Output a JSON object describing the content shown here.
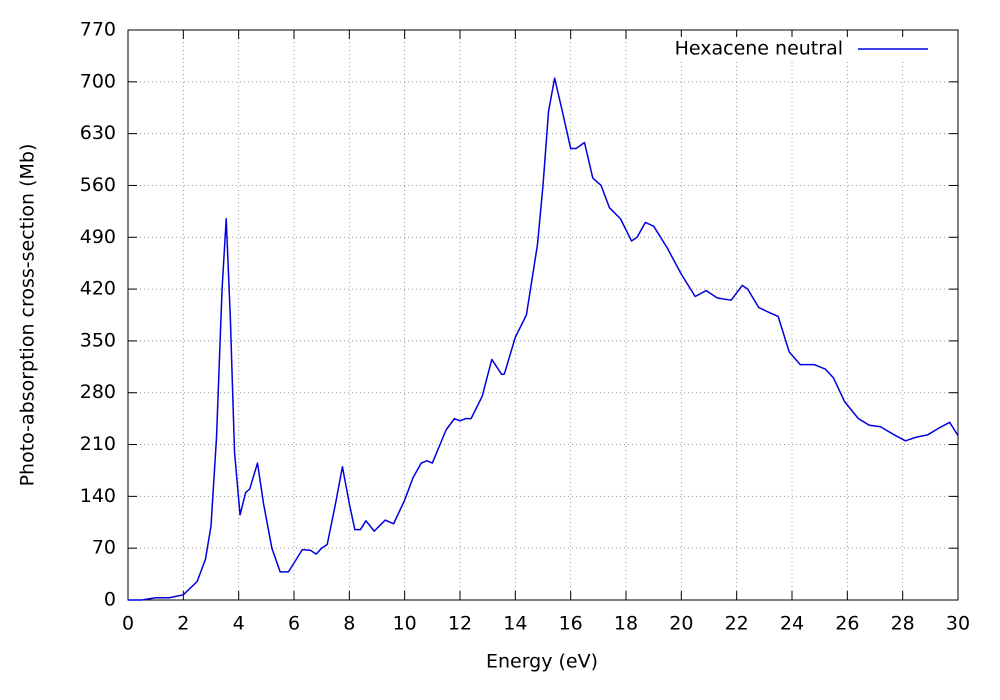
{
  "chart_data": {
    "type": "line",
    "x_label": "Energy (eV)",
    "y_label": "Photo-absorption cross-section (Mb)",
    "xlim": [
      0,
      30
    ],
    "xticks": [
      0,
      2,
      4,
      6,
      8,
      10,
      12,
      14,
      16,
      18,
      20,
      22,
      24,
      26,
      28,
      30
    ],
    "ylim": [
      0,
      770
    ],
    "yticks": [
      0,
      70,
      140,
      210,
      280,
      350,
      420,
      490,
      560,
      630,
      700,
      770
    ],
    "grid": true,
    "legend": "top-right",
    "x": [
      0,
      0.5,
      1.0,
      1.5,
      2.0,
      2.5,
      2.8,
      3.0,
      3.2,
      3.4,
      3.55,
      3.7,
      3.85,
      4.05,
      4.25,
      4.4,
      4.68,
      4.9,
      5.2,
      5.5,
      5.8,
      6.0,
      6.3,
      6.6,
      6.8,
      7.0,
      7.2,
      7.5,
      7.75,
      8.0,
      8.2,
      8.4,
      8.6,
      8.9,
      9.3,
      9.6,
      10.0,
      10.3,
      10.6,
      10.8,
      11.0,
      11.5,
      11.8,
      12.0,
      12.2,
      12.4,
      12.8,
      13.15,
      13.5,
      13.6,
      14.0,
      14.4,
      14.8,
      15.0,
      15.2,
      15.42,
      15.7,
      16.0,
      16.2,
      16.5,
      16.8,
      17.1,
      17.4,
      17.8,
      18.2,
      18.4,
      18.7,
      19.0,
      19.5,
      20.0,
      20.5,
      20.9,
      21.3,
      21.8,
      22.2,
      22.4,
      22.8,
      23.2,
      23.5,
      23.9,
      24.3,
      24.8,
      25.2,
      25.5,
      25.9,
      26.4,
      26.8,
      27.2,
      27.7,
      28.1,
      28.5,
      28.9,
      29.3,
      29.7,
      30.0
    ],
    "series": [
      {
        "name": "Hexacene neutral",
        "color": "#0000e0",
        "values": [
          0,
          0,
          3,
          3,
          7,
          25,
          55,
          100,
          220,
          420,
          515,
          380,
          200,
          115,
          145,
          150,
          185,
          130,
          70,
          38,
          38,
          50,
          68,
          67,
          62,
          70,
          75,
          130,
          180,
          130,
          95,
          95,
          107,
          93,
          108,
          103,
          135,
          165,
          185,
          188,
          185,
          230,
          245,
          242,
          245,
          245,
          275,
          325,
          305,
          305,
          355,
          385,
          480,
          560,
          660,
          705,
          660,
          610,
          610,
          618,
          570,
          560,
          530,
          515,
          485,
          490,
          510,
          505,
          475,
          440,
          410,
          418,
          408,
          405,
          425,
          420,
          395,
          388,
          383,
          335,
          318,
          318,
          312,
          300,
          268,
          245,
          236,
          234,
          223,
          215,
          220,
          223,
          232,
          240,
          222
        ]
      }
    ]
  }
}
